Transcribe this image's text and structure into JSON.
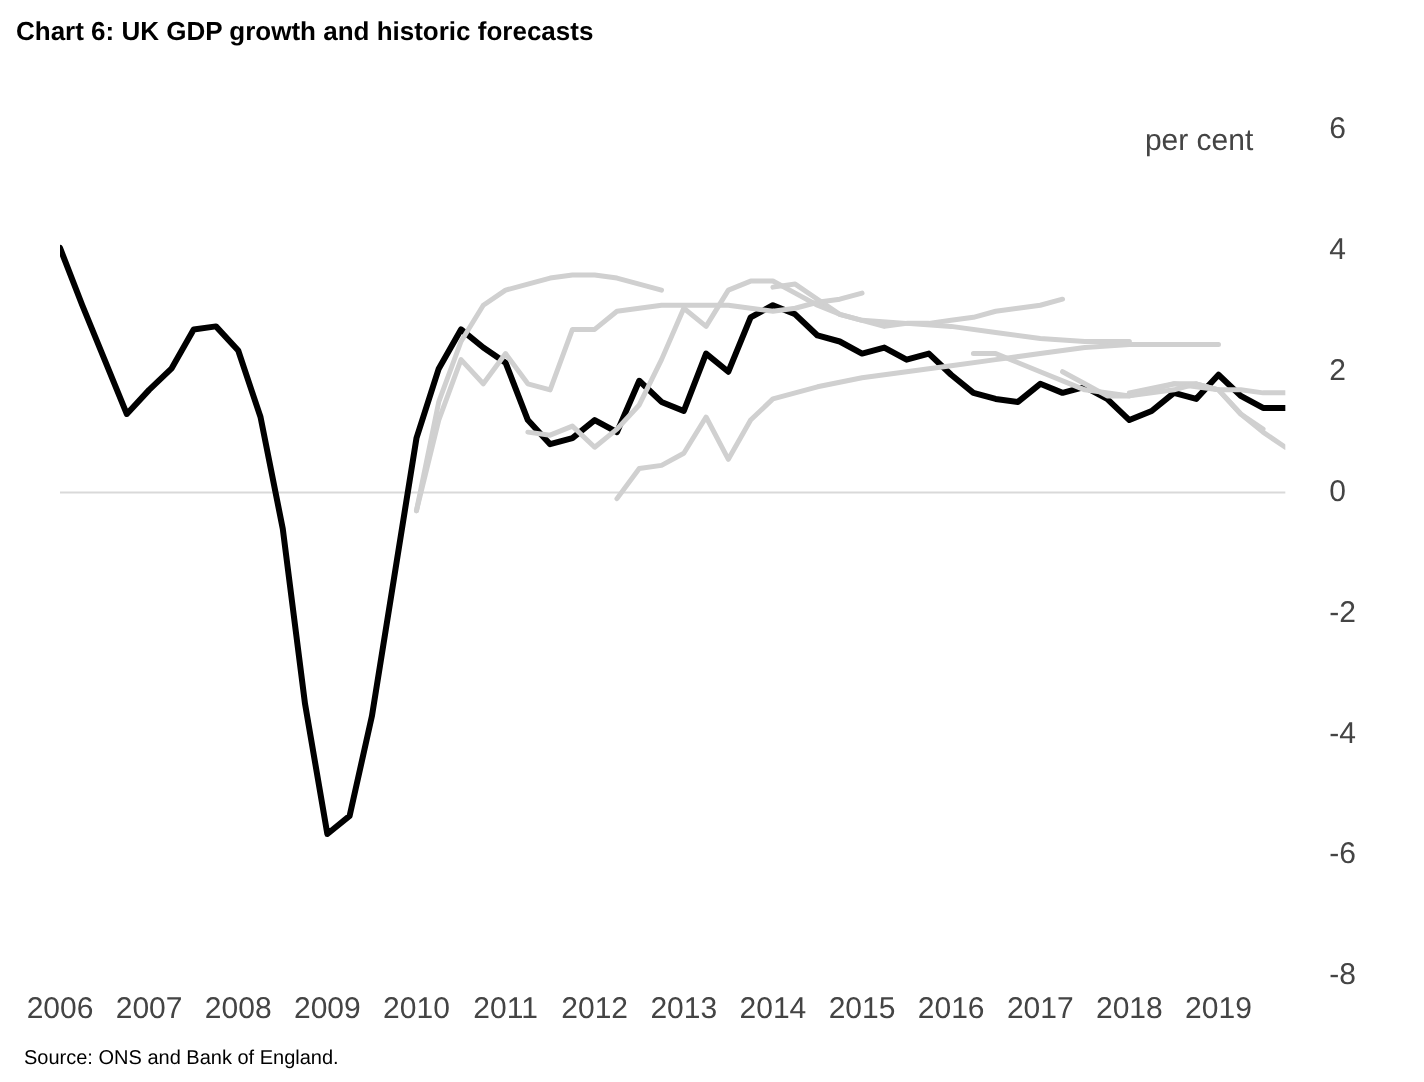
{
  "chart_data": {
    "type": "line",
    "title": "Chart 6: UK GDP growth and historic forecasts",
    "ylabel": "per cent",
    "annotations": [
      "Source: ONS and Bank of England."
    ],
    "xlim": [
      2006,
      2019.75
    ],
    "xticks": [
      2006,
      2007,
      2008,
      2009,
      2010,
      2011,
      2012,
      2013,
      2014,
      2015,
      2016,
      2017,
      2018,
      2019
    ],
    "ylim": [
      -8,
      6
    ],
    "yticks": [
      -8,
      -6,
      -4,
      -2,
      0,
      2,
      4,
      6
    ],
    "ref_lines": [
      {
        "axis": "y",
        "value": 0,
        "color": "#d9d9d9"
      }
    ],
    "grid": false,
    "marker": "none",
    "line_style": "solid",
    "series": [
      {
        "color": "#d0d0d0",
        "x": [
          2010,
          2010.25,
          2010.5,
          2010.75,
          2011,
          2011.25,
          2011.5,
          2011.75,
          2012,
          2012.25,
          2012.5,
          2012.75
        ],
        "values": [
          -0.3,
          1.5,
          2.5,
          3.1,
          3.35,
          3.45,
          3.55,
          3.6,
          3.6,
          3.55,
          3.45,
          3.35
        ]
      },
      {
        "color": "#d0d0d0",
        "x": [
          2010,
          2010.25,
          2010.5,
          2010.75,
          2011,
          2011.25,
          2011.5,
          2011.75,
          2012,
          2012.25,
          2012.5,
          2012.75,
          2013,
          2013.25,
          2013.5,
          2013.75,
          2014,
          2014.25,
          2014.5,
          2014.75,
          2015
        ],
        "values": [
          -0.3,
          1.2,
          2.2,
          1.8,
          2.3,
          1.8,
          1.7,
          2.7,
          2.7,
          3,
          3.05,
          3.1,
          3.1,
          3.1,
          3.1,
          3.05,
          3,
          3.05,
          3.15,
          3.2,
          3.3
        ]
      },
      {
        "color": "#d0d0d0",
        "x": [
          2011.25,
          2011.5,
          2011.75,
          2012,
          2012.25,
          2012.5,
          2012.75,
          2013,
          2013.25,
          2013.5,
          2013.75,
          2014,
          2014.25,
          2014.5,
          2014.75,
          2015,
          2015.25,
          2015.5,
          2015.75,
          2016,
          2016.25,
          2016.5,
          2016.75,
          2017,
          2017.25
        ],
        "values": [
          1,
          0.95,
          1.1,
          0.75,
          1.05,
          1.45,
          2.2,
          3.05,
          2.75,
          3.35,
          3.5,
          3.5,
          3.3,
          3.1,
          2.95,
          2.85,
          2.75,
          2.8,
          2.8,
          2.85,
          2.9,
          3,
          3.05,
          3.1,
          3.2
        ]
      },
      {
        "color": "#d0d0d0",
        "x": [
          2012.25,
          2012.5,
          2012.75,
          2013,
          2013.25,
          2013.5,
          2013.75,
          2014,
          2014.5,
          2015,
          2015.5,
          2016,
          2016.5,
          2017,
          2017.5,
          2018,
          2018.5,
          2019
        ],
        "values": [
          -0.1,
          0.4,
          0.45,
          0.65,
          1.25,
          0.55,
          1.2,
          1.55,
          1.75,
          1.9,
          2,
          2.1,
          2.2,
          2.3,
          2.4,
          2.45,
          2.45,
          2.45
        ]
      },
      {
        "color": "#d0d0d0",
        "x": [
          2014,
          2014.25,
          2014.5,
          2014.75,
          2015,
          2015.5,
          2016,
          2016.5,
          2017,
          2017.5,
          2018
        ],
        "values": [
          3.4,
          3.45,
          3.2,
          2.95,
          2.85,
          2.8,
          2.75,
          2.65,
          2.55,
          2.5,
          2.5
        ]
      },
      {
        "color": "#d0d0d0",
        "x": [
          2016.25,
          2016.5,
          2017,
          2017.5,
          2018,
          2018.5,
          2018.75,
          2019,
          2019.25,
          2019.5,
          2019.75
        ],
        "values": [
          2.3,
          2.3,
          2,
          1.7,
          1.6,
          1.7,
          1.8,
          1.7,
          1.3,
          1,
          0.75
        ]
      },
      {
        "color": "#d0d0d0",
        "x": [
          2017.25,
          2017.5,
          2017.75,
          2018,
          2018.25,
          2018.5,
          2018.75,
          2019,
          2019.25,
          2019.5,
          2019.75
        ],
        "values": [
          2,
          1.8,
          1.6,
          1.6,
          1.7,
          1.8,
          1.8,
          1.7,
          1.7,
          1.65,
          1.65
        ]
      },
      {
        "color": "#d0d0d0",
        "x": [
          2018,
          2018.5,
          2019,
          2019.25,
          2019.5
        ],
        "values": [
          1.65,
          1.8,
          1.7,
          1.3,
          1.05
        ]
      },
      {
        "color": "#000000",
        "x": [
          2006,
          2006.25,
          2006.5,
          2006.75,
          2007,
          2007.25,
          2007.5,
          2007.75,
          2008,
          2008.25,
          2008.5,
          2008.75,
          2009,
          2009.25,
          2009.5,
          2009.75,
          2010,
          2010.25,
          2010.5,
          2010.75,
          2011,
          2011.25,
          2011.5,
          2011.75,
          2012,
          2012.25,
          2012.5,
          2012.75,
          2013,
          2013.25,
          2013.5,
          2013.75,
          2014,
          2014.25,
          2014.5,
          2014.75,
          2015,
          2015.25,
          2015.5,
          2015.75,
          2016,
          2016.25,
          2016.5,
          2016.75,
          2017,
          2017.25,
          2017.5,
          2017.75,
          2018,
          2018.25,
          2018.5,
          2018.75,
          2019,
          2019.25,
          2019.5,
          2019.75
        ],
        "values": [
          4.05,
          3.1,
          2.2,
          1.3,
          1.7,
          2.05,
          2.7,
          2.75,
          2.35,
          1.25,
          -0.6,
          -3.5,
          -5.65,
          -5.35,
          -3.7,
          -1.4,
          0.9,
          2.05,
          2.7,
          2.4,
          2.15,
          1.2,
          0.8,
          0.9,
          1.2,
          1,
          1.85,
          1.5,
          1.35,
          2.3,
          2,
          2.9,
          3.1,
          2.95,
          2.6,
          2.5,
          2.3,
          2.4,
          2.2,
          2.3,
          1.95,
          1.65,
          1.55,
          1.5,
          1.8,
          1.65,
          1.75,
          1.55,
          1.2,
          1.35,
          1.65,
          1.55,
          1.95,
          1.6,
          1.4,
          1.4
        ]
      }
    ]
  }
}
